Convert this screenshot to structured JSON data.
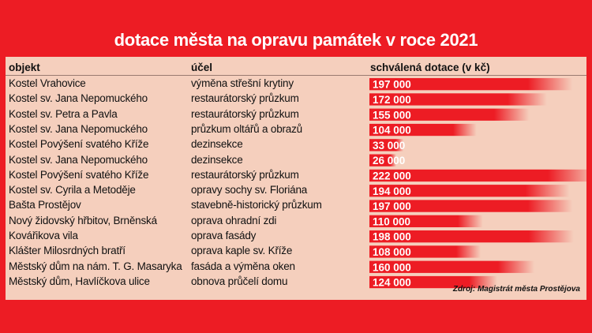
{
  "title": "dotace města na opravu památek v roce 2021",
  "headers": {
    "object": "objekt",
    "purpose": "účel",
    "amount": "schválená dotace (v kč)"
  },
  "source": "Zdroj: Magistrát města Prostějova",
  "colors": {
    "background": "#ed1c24",
    "panel": "#f5cfbd",
    "bar": "#ed1c24"
  },
  "chart_data": {
    "type": "bar",
    "orientation": "horizontal",
    "title": "dotace města na opravu památek v roce 2021",
    "rows": [
      {
        "object": "Kostel Vrahovice",
        "purpose": "výměna střešní krytiny",
        "value": 197000,
        "label": "197 000"
      },
      {
        "object": "Kostel sv. Jana Nepomuckého",
        "purpose": "restaurátorský průzkum",
        "value": 172000,
        "label": "172 000"
      },
      {
        "object": "Kostel sv. Petra a Pavla",
        "purpose": "restaurátorský průzkum",
        "value": 155000,
        "label": "155 000"
      },
      {
        "object": "Kostel sv. Jana Nepomuckého",
        "purpose": "průzkum oltářů a obrazů",
        "value": 104000,
        "label": "104 000"
      },
      {
        "object": "Kostel Povýšení svatého Kříže",
        "purpose": "dezinsekce",
        "value": 33000,
        "label": "33 000"
      },
      {
        "object": "Kostel sv. Jana Nepomuckého",
        "purpose": "dezinsekce",
        "value": 26000,
        "label": "26 000"
      },
      {
        "object": "Kostel Povýšení svatého Kříže",
        "purpose": "restaurátorský průzkum",
        "value": 222000,
        "label": "222 000"
      },
      {
        "object": "Kostel sv. Cyrila a Metoděje",
        "purpose": "opravy sochy sv. Floriána",
        "value": 194000,
        "label": "194 000"
      },
      {
        "object": "Bašta Prostějov",
        "purpose": "stavebně-historický průzkum",
        "value": 197000,
        "label": "197 000"
      },
      {
        "object": "Nový židovský hřbitov, Brněnská",
        "purpose": "oprava ohradní zdi",
        "value": 110000,
        "label": "110 000"
      },
      {
        "object": "Kovářikova vila",
        "purpose": "oprava fasády",
        "value": 198000,
        "label": "198 000"
      },
      {
        "object": "Klášter Milosrdných bratří",
        "purpose": "oprava kaple sv. Kříže",
        "value": 108000,
        "label": "108 000"
      },
      {
        "object": "Městský dům na nám. T. G. Masaryka",
        "purpose": "fasáda a výměna oken",
        "value": 160000,
        "label": "160 000"
      },
      {
        "object": "Městský dům, Havlíčkova ulice",
        "purpose": "obnova průčelí domu",
        "value": 124000,
        "label": "124 000"
      }
    ]
  }
}
